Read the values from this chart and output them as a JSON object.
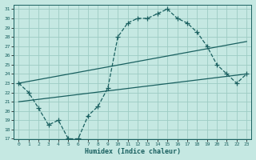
{
  "xlabel": "Humidex (Indice chaleur)",
  "bg_color": "#c5e8e2",
  "grid_color": "#9dccc4",
  "line_color": "#1a6060",
  "text_color": "#1a6060",
  "xlim": [
    -0.5,
    23.5
  ],
  "ylim": [
    17,
    31.5
  ],
  "xtick_vals": [
    0,
    1,
    2,
    3,
    4,
    5,
    6,
    7,
    8,
    9,
    10,
    11,
    12,
    13,
    14,
    15,
    16,
    17,
    18,
    19,
    20,
    21,
    22,
    23
  ],
  "xtick_labels": [
    "0",
    "1",
    "2",
    "3",
    "4",
    "5",
    "6",
    "7",
    "8",
    "9",
    "10",
    "11",
    "12",
    "13",
    "14",
    "15",
    "16",
    "17",
    "18",
    "19",
    "20",
    "21",
    "22",
    "23"
  ],
  "ytick_vals": [
    17,
    18,
    19,
    20,
    21,
    22,
    23,
    24,
    25,
    26,
    27,
    28,
    29,
    30,
    31
  ],
  "curve_x": [
    0,
    1,
    2,
    3,
    4,
    5,
    6,
    7,
    8,
    9,
    10,
    11,
    12,
    13,
    14,
    15,
    16,
    17,
    18,
    19,
    20,
    21,
    22,
    23
  ],
  "curve_y": [
    23,
    22,
    20.3,
    18.5,
    19,
    17,
    17,
    19.5,
    20.5,
    22.5,
    28,
    29.5,
    30,
    30,
    30.5,
    31,
    30,
    29.5,
    28.5,
    27,
    25,
    24,
    23,
    24
  ],
  "trend1_x": [
    0,
    23
  ],
  "trend1_y": [
    21,
    24
  ],
  "trend2_x": [
    0,
    23
  ],
  "trend2_y": [
    23,
    27.5
  ]
}
